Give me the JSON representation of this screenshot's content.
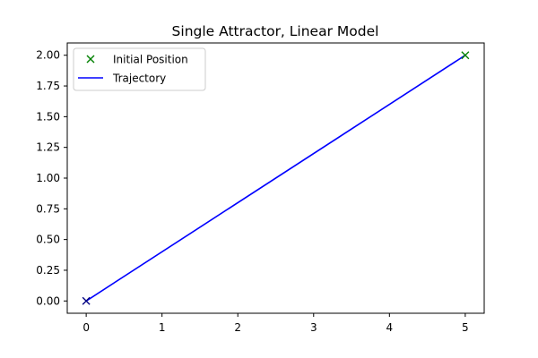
{
  "chart_data": {
    "type": "line",
    "title": "Single Attractor, Linear Model",
    "xlabel": "",
    "ylabel": "",
    "xlim": [
      -0.25,
      5.25
    ],
    "ylim": [
      -0.1,
      2.1
    ],
    "x_ticks": [
      0,
      1,
      2,
      3,
      4,
      5
    ],
    "x_tick_labels": [
      "0",
      "1",
      "2",
      "3",
      "4",
      "5"
    ],
    "y_ticks": [
      0,
      0.25,
      0.5,
      0.75,
      1.0,
      1.25,
      1.5,
      1.75,
      2.0
    ],
    "y_tick_labels": [
      "0.00",
      "0.25",
      "0.50",
      "0.75",
      "1.00",
      "1.25",
      "1.50",
      "1.75",
      "2.00"
    ],
    "grid": false,
    "legend_position": "upper-left",
    "series": [
      {
        "name": "Initial Position",
        "kind": "marker",
        "marker": "x",
        "color": "#008000",
        "points": [
          [
            5,
            2
          ]
        ]
      },
      {
        "name": "Trajectory",
        "kind": "line",
        "color": "#0000ff",
        "points": [
          [
            0,
            0
          ],
          [
            5,
            2
          ]
        ]
      }
    ],
    "extra_markers": [
      {
        "marker": "x",
        "color": "#000080",
        "points": [
          [
            0,
            0
          ]
        ]
      }
    ]
  }
}
